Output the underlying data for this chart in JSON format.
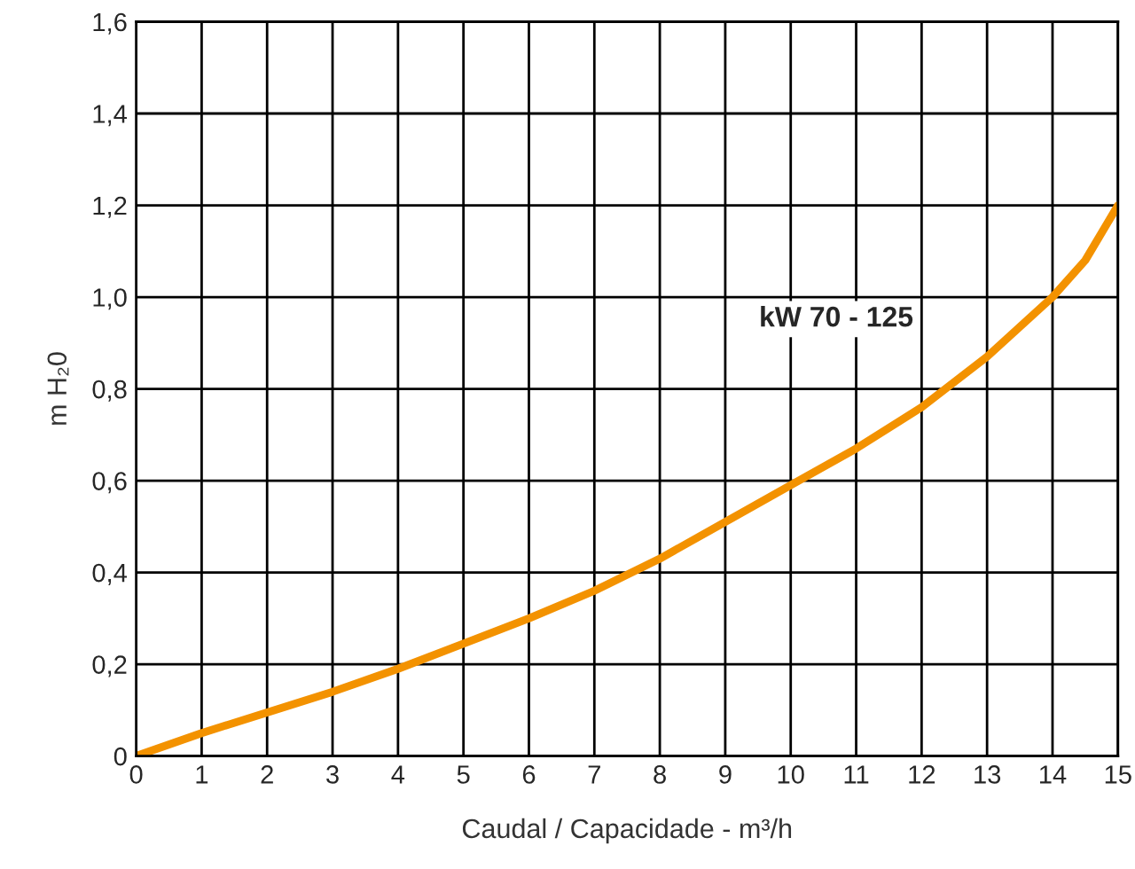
{
  "chart_data": {
    "type": "line",
    "xlabel": "Caudal / Capacidade - m³/h",
    "ylabel": "m H₂0",
    "x": [
      0,
      1,
      2,
      3,
      4,
      5,
      6,
      7,
      8,
      9,
      10,
      11,
      12,
      13,
      14,
      14.5,
      15
    ],
    "series": [
      {
        "color": "#f39200",
        "values": [
          0,
          0.05,
          0.095,
          0.14,
          0.19,
          0.245,
          0.3,
          0.36,
          0.43,
          0.51,
          0.59,
          0.67,
          0.76,
          0.87,
          1.0,
          1.08,
          1.2
        ]
      }
    ],
    "annotations": [
      "kW 70 - 125"
    ],
    "xlim": [
      0,
      15
    ],
    "xticks": [
      0,
      1,
      2,
      3,
      4,
      5,
      6,
      7,
      8,
      9,
      10,
      11,
      12,
      13,
      14,
      15
    ],
    "ylim": [
      0,
      1.6
    ],
    "yticks": [
      0,
      {
        "value": 0.2,
        "label": "0,2"
      },
      {
        "value": 0.4,
        "label": "0,4"
      },
      {
        "value": 0.6,
        "label": "0,6"
      },
      {
        "value": 0.8,
        "label": "0,8"
      },
      {
        "value": 1.0,
        "label": "1,0"
      },
      {
        "value": 1.2,
        "label": "1,2"
      },
      {
        "value": 1.4,
        "label": "1,4"
      },
      {
        "value": 1.6,
        "label": "1,6"
      }
    ],
    "grid": true,
    "marker": "none",
    "line_style": "solid"
  }
}
